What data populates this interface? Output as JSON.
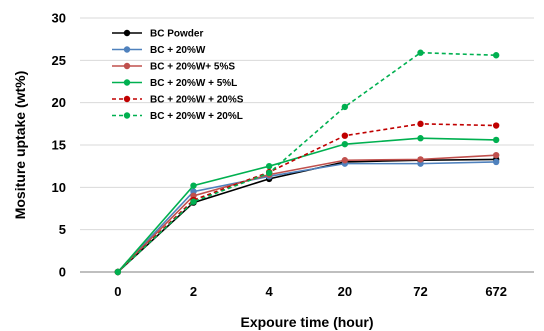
{
  "chart_data": {
    "type": "line",
    "title": "",
    "xlabel": "Expoure time (hour)",
    "ylabel": "Mositure uptake (wt%)",
    "categories": [
      "0",
      "2",
      "4",
      "20",
      "72",
      "672"
    ],
    "ylim": [
      0,
      30
    ],
    "yticks": [
      "0",
      "5",
      "10",
      "15",
      "20",
      "25",
      "30"
    ],
    "grid": "horizontal",
    "legend_position": "top-left",
    "series": [
      {
        "name": "BC Powder",
        "color": "#000000",
        "dashed": false,
        "values": [
          0,
          8.2,
          11.0,
          13.0,
          13.2,
          13.3
        ]
      },
      {
        "name": "BC + 20%W",
        "color": "#4f81bd",
        "dashed": false,
        "values": [
          0,
          9.5,
          11.3,
          12.8,
          12.8,
          13.0
        ]
      },
      {
        "name": "BC + 20%W+ 5%S",
        "color": "#c0504d",
        "dashed": false,
        "values": [
          0,
          9.0,
          11.5,
          13.2,
          13.3,
          13.8
        ]
      },
      {
        "name": "BC + 20%W + 5%L",
        "color": "#00b050",
        "dashed": false,
        "values": [
          0,
          10.2,
          12.5,
          15.1,
          15.8,
          15.6
        ]
      },
      {
        "name": "BC + 20%W + 20%S",
        "color": "#c00000",
        "dashed": true,
        "values": [
          0,
          8.5,
          11.8,
          16.1,
          17.5,
          17.3
        ]
      },
      {
        "name": "BC + 20%W + 20%L",
        "color": "#00b050",
        "dashed": true,
        "values": [
          0,
          8.3,
          11.7,
          19.5,
          25.9,
          25.6
        ]
      }
    ]
  }
}
